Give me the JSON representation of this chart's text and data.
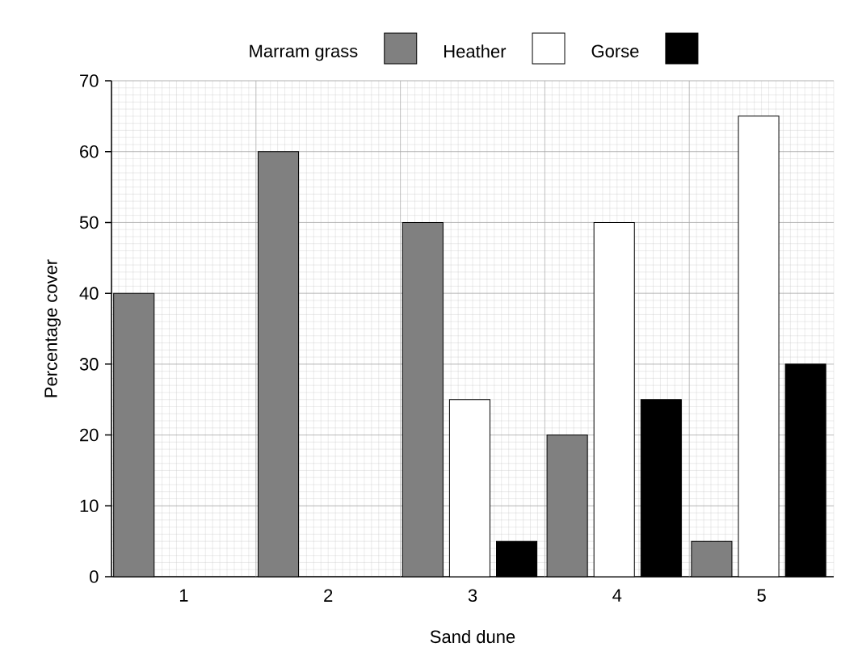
{
  "chart_data": {
    "type": "bar",
    "xlabel": "Sand dune",
    "ylabel": "Percentage cover",
    "categories": [
      "1",
      "2",
      "3",
      "4",
      "5"
    ],
    "series": [
      {
        "name": "Marram grass",
        "color": "#808080",
        "values": [
          40,
          60,
          50,
          20,
          5
        ]
      },
      {
        "name": "Heather",
        "color": "#ffffff",
        "values": [
          0,
          0,
          25,
          50,
          65
        ]
      },
      {
        "name": "Gorse",
        "color": "#000000",
        "values": [
          0,
          0,
          5,
          25,
          30
        ]
      }
    ],
    "ylim": [
      0,
      70
    ],
    "yticks": [
      0,
      10,
      20,
      30,
      40,
      50,
      60,
      70
    ],
    "grid": true,
    "legend": "top"
  }
}
